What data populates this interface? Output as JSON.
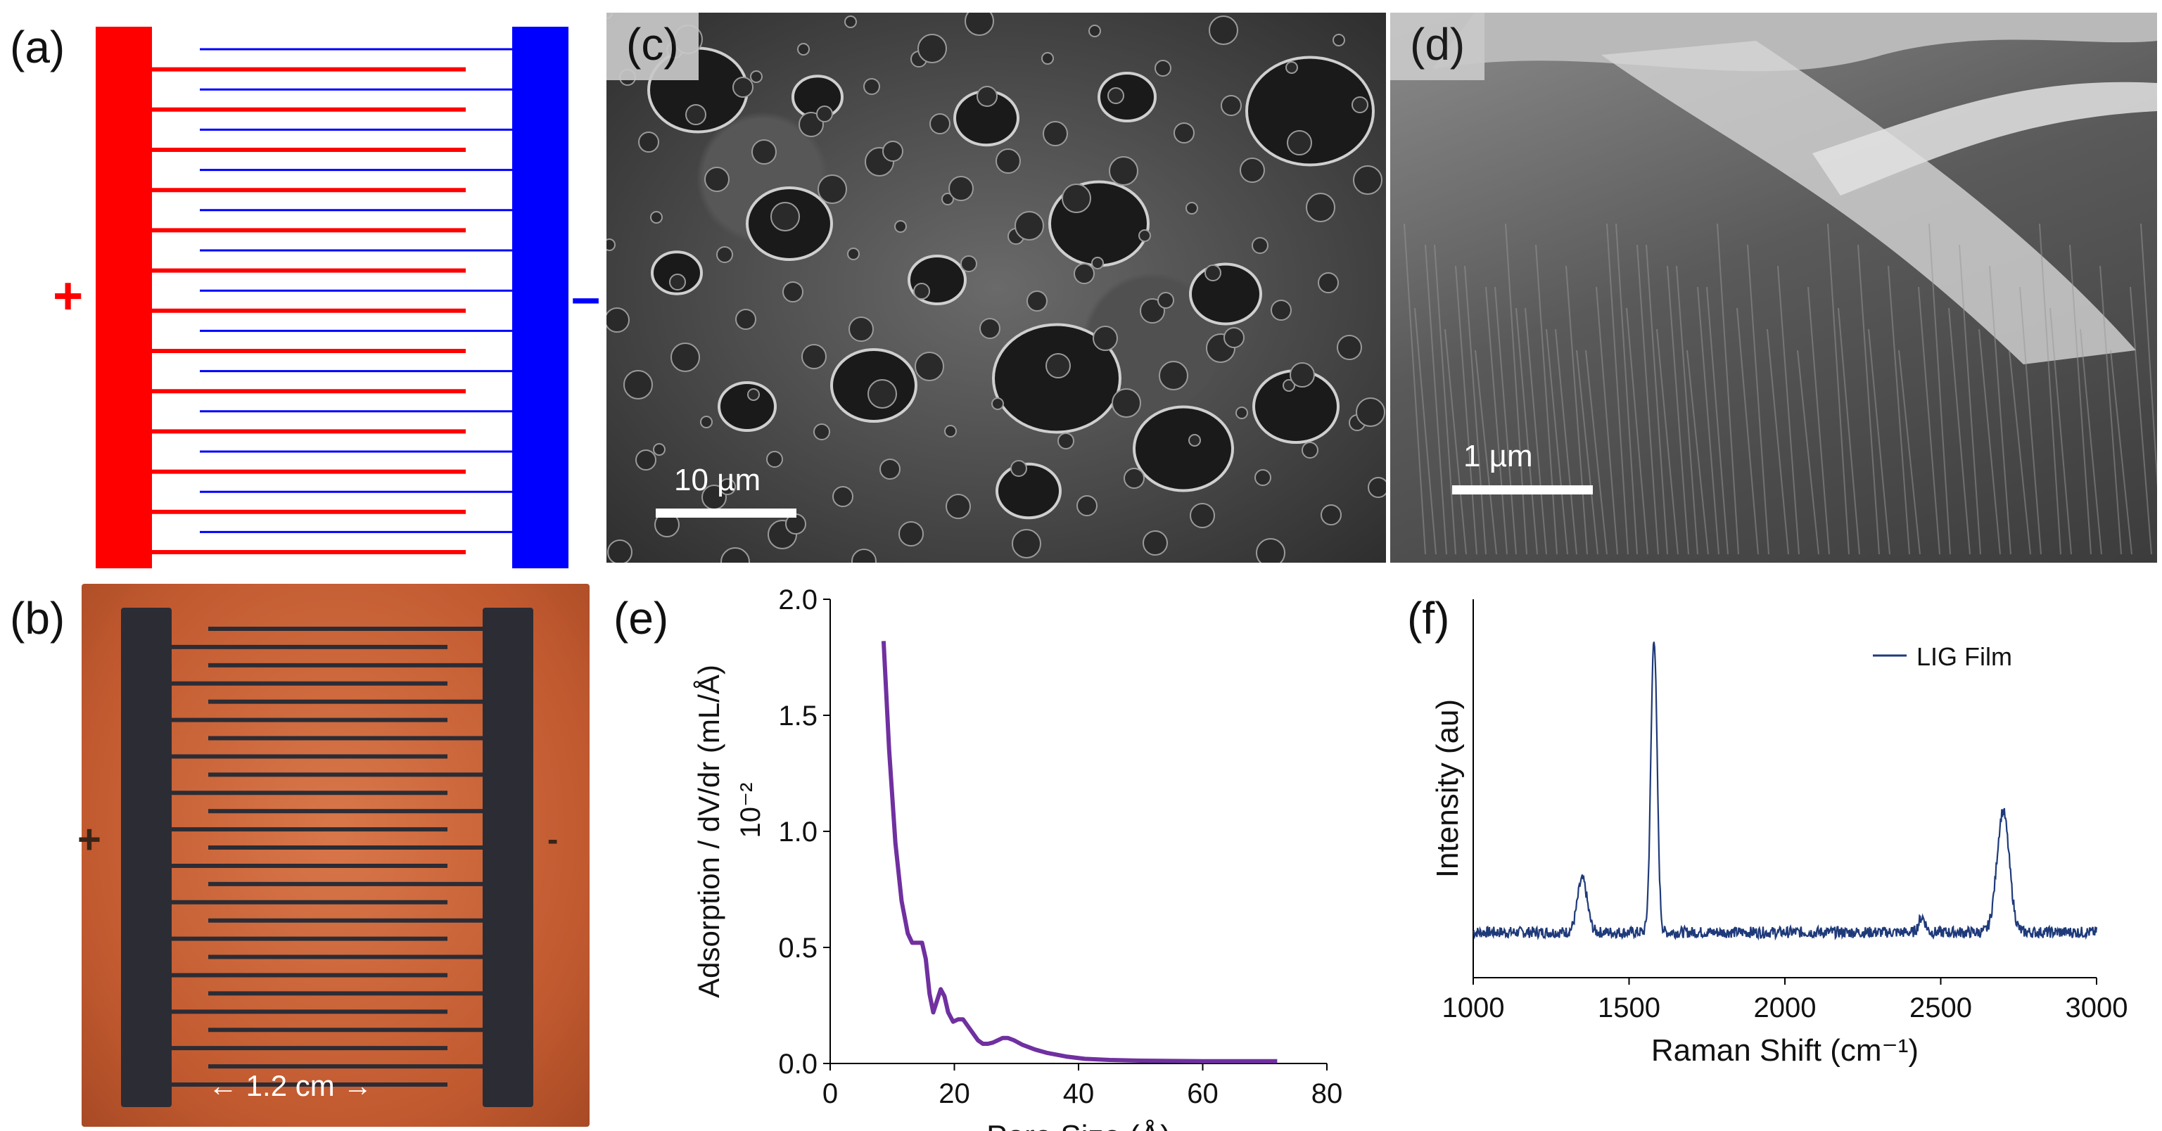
{
  "panels": {
    "a": {
      "label": "(a)",
      "plus_sign": "+",
      "minus_sign": "–",
      "finger_pairs": 13,
      "colors": {
        "positive": "#ff0000",
        "negative": "#0000ff"
      }
    },
    "b": {
      "label": "(b)",
      "dimension_label": "←  1.2 cm  →",
      "plus_sign": "+",
      "minus_sign": "-"
    },
    "c": {
      "label": "(c)",
      "scale_label": "10 µm"
    },
    "d": {
      "label": "(d)",
      "scale_label": "1 µm"
    },
    "e": {
      "label": "(e)"
    },
    "f": {
      "label": "(f)"
    }
  },
  "chart_data": [
    {
      "id": "e",
      "type": "line",
      "xlabel": "Pore Size (Å)",
      "ylabel": "Adsorption / dV/dr (mL/Å)",
      "ylabel_scale": "10⁻²",
      "xlim": [
        0,
        80
      ],
      "ylim": [
        0,
        2.0
      ],
      "xticks": [
        "0",
        "20",
        "40",
        "60",
        "80"
      ],
      "yticks": [
        "0.0",
        "0.5",
        "1.0",
        "1.5",
        "2.0"
      ],
      "grid": false,
      "series": [
        {
          "color": "#7030a0",
          "x": [
            8.6,
            9.5,
            10.5,
            11.5,
            12.5,
            13.2,
            14,
            14.8,
            15.4,
            16,
            16.6,
            17.2,
            17.8,
            18.4,
            19,
            19.8,
            20.6,
            21.4,
            22.2,
            23,
            23.8,
            24.6,
            25.4,
            26.2,
            27,
            27.8,
            28.6,
            29.6,
            31,
            33,
            35,
            38,
            41,
            45,
            50,
            55,
            60,
            65,
            72
          ],
          "y": [
            1.82,
            1.35,
            0.95,
            0.7,
            0.56,
            0.52,
            0.52,
            0.52,
            0.45,
            0.3,
            0.22,
            0.27,
            0.32,
            0.29,
            0.22,
            0.18,
            0.19,
            0.19,
            0.16,
            0.13,
            0.1,
            0.085,
            0.085,
            0.09,
            0.1,
            0.11,
            0.11,
            0.1,
            0.08,
            0.06,
            0.045,
            0.03,
            0.02,
            0.015,
            0.012,
            0.011,
            0.01,
            0.01,
            0.01
          ]
        }
      ]
    },
    {
      "id": "f",
      "type": "line",
      "xlabel": "Raman Shift (cm⁻¹)",
      "ylabel": "Intensity (au)",
      "xlim": [
        1000,
        3000
      ],
      "xticks": [
        "1000",
        "1500",
        "2000",
        "2500",
        "3000"
      ],
      "grid": false,
      "legend": "top-right",
      "series": [
        {
          "name": "LIG Film",
          "color": "#1f3a7a",
          "baseline": 0.12,
          "peaks": [
            {
              "x": 1350,
              "height": 0.14,
              "width": 22
            },
            {
              "x": 1580,
              "height": 0.78,
              "width": 14
            },
            {
              "x": 2440,
              "height": 0.04,
              "width": 15
            },
            {
              "x": 2700,
              "height": 0.32,
              "width": 28
            }
          ]
        }
      ]
    }
  ]
}
